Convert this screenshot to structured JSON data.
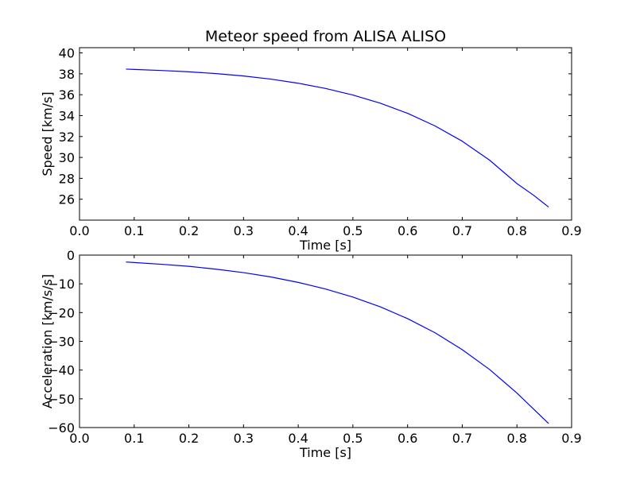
{
  "chart_data": [
    {
      "type": "line",
      "title": "Meteor speed from  ALISA ALISO",
      "xlabel": "Time [s]",
      "ylabel": "Speed [km/s]",
      "xlim": [
        0.0,
        0.9
      ],
      "ylim": [
        24.0,
        40.5
      ],
      "xticks": [
        "0.0",
        "0.1",
        "0.2",
        "0.3",
        "0.4",
        "0.5",
        "0.6",
        "0.7",
        "0.8",
        "0.9"
      ],
      "yticks": [
        "26",
        "28",
        "30",
        "32",
        "34",
        "36",
        "38",
        "40"
      ],
      "grid": false,
      "color": "#0000ff",
      "series": [
        {
          "x": [
            0.085,
            0.1,
            0.15,
            0.2,
            0.25,
            0.3,
            0.35,
            0.4,
            0.45,
            0.5,
            0.55,
            0.6,
            0.65,
            0.7,
            0.75,
            0.8,
            0.83,
            0.858
          ],
          "y": [
            38.45,
            38.42,
            38.32,
            38.19,
            38.02,
            37.79,
            37.49,
            37.1,
            36.6,
            35.97,
            35.19,
            34.22,
            33.02,
            31.55,
            29.74,
            27.5,
            26.4,
            25.25
          ]
        }
      ]
    },
    {
      "type": "line",
      "title": "",
      "xlabel": "Time [s]",
      "ylabel": "Acceleration [km/s/s]",
      "xlim": [
        0.0,
        0.9
      ],
      "ylim": [
        -60,
        0
      ],
      "xticks": [
        "0.0",
        "0.1",
        "0.2",
        "0.3",
        "0.4",
        "0.5",
        "0.6",
        "0.7",
        "0.8",
        "0.9"
      ],
      "yticks": [
        "0",
        "−10",
        "−20",
        "−30",
        "−40",
        "−50",
        "−60"
      ],
      "grid": false,
      "color": "#0000ff",
      "series": [
        {
          "x": [
            0.085,
            0.1,
            0.15,
            0.2,
            0.25,
            0.3,
            0.35,
            0.4,
            0.45,
            0.5,
            0.55,
            0.6,
            0.65,
            0.7,
            0.75,
            0.8,
            0.83,
            0.858
          ],
          "y": [
            -2.4,
            -2.6,
            -3.2,
            -3.9,
            -4.9,
            -6.1,
            -7.6,
            -9.5,
            -11.8,
            -14.6,
            -18.0,
            -22.1,
            -27.0,
            -32.9,
            -39.8,
            -48.0,
            -53.5,
            -58.6
          ]
        }
      ]
    }
  ]
}
